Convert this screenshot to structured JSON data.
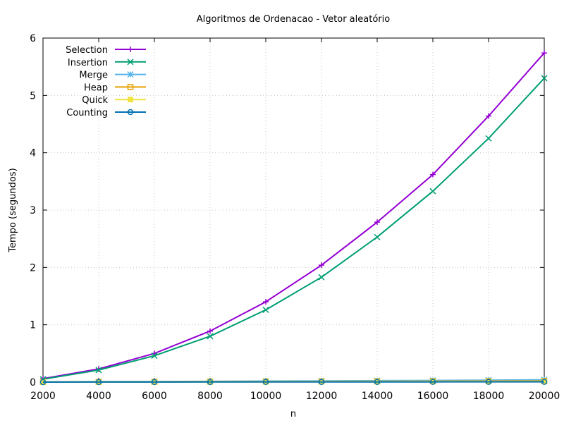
{
  "chart_data": {
    "type": "line",
    "title": "Algoritmos de Ordenacao - Vetor aleatório",
    "xlabel": "n",
    "ylabel": "Tempo (segundos)",
    "xlim": [
      2000,
      20000
    ],
    "ylim": [
      0,
      6
    ],
    "xticks": [
      "2000",
      "4000",
      "6000",
      "8000",
      "10000",
      "12000",
      "14000",
      "16000",
      "18000",
      "20000"
    ],
    "yticks": [
      "0",
      "1",
      "2",
      "3",
      "4",
      "5",
      "6"
    ],
    "grid": true,
    "legend_position": "top-left",
    "x": [
      2000,
      4000,
      6000,
      8000,
      10000,
      12000,
      14000,
      16000,
      18000,
      20000
    ],
    "series": [
      {
        "name": "Selection",
        "color": "#9400d3",
        "marker": "plus",
        "values": [
          0.06,
          0.23,
          0.5,
          0.89,
          1.4,
          2.04,
          2.79,
          3.62,
          4.64,
          5.74
        ]
      },
      {
        "name": "Insertion",
        "color": "#009e73",
        "marker": "cross",
        "values": [
          0.05,
          0.21,
          0.46,
          0.8,
          1.26,
          1.83,
          2.53,
          3.33,
          4.25,
          5.3
        ]
      },
      {
        "name": "Merge",
        "color": "#56b4e9",
        "marker": "star",
        "values": [
          0.005,
          0.008,
          0.011,
          0.014,
          0.018,
          0.022,
          0.026,
          0.03,
          0.035,
          0.04
        ]
      },
      {
        "name": "Heap",
        "color": "#e69f00",
        "marker": "square",
        "values": [
          0.002,
          0.004,
          0.006,
          0.008,
          0.01,
          0.012,
          0.014,
          0.016,
          0.018,
          0.02
        ]
      },
      {
        "name": "Quick",
        "color": "#f0e442",
        "marker": "filled-square",
        "values": [
          0.001,
          0.002,
          0.003,
          0.004,
          0.005,
          0.006,
          0.007,
          0.008,
          0.009,
          0.01
        ]
      },
      {
        "name": "Counting",
        "color": "#0072b2",
        "marker": "circle",
        "values": [
          0.0005,
          0.001,
          0.0015,
          0.002,
          0.0025,
          0.003,
          0.0035,
          0.004,
          0.0045,
          0.005
        ]
      }
    ]
  }
}
